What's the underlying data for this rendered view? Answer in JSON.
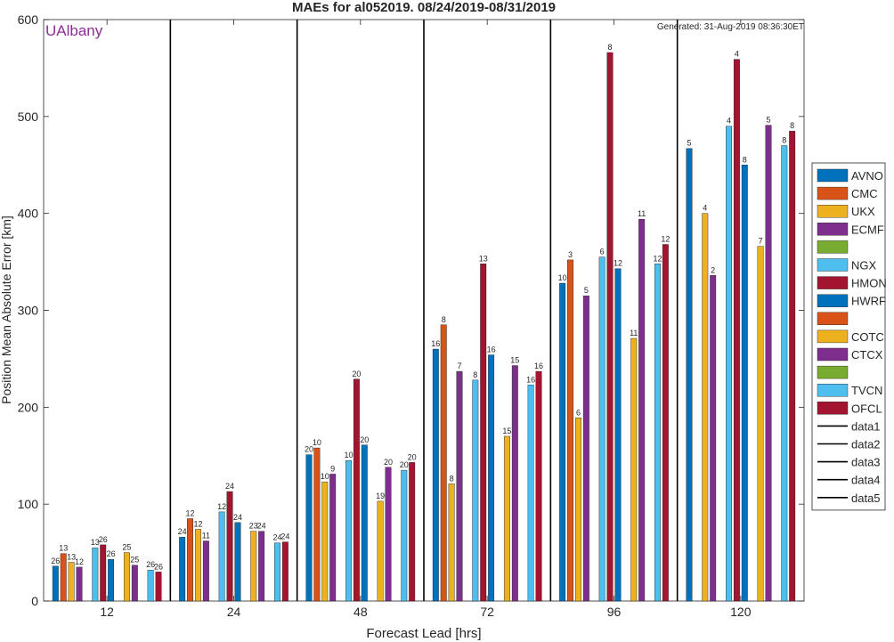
{
  "chart_data": {
    "type": "bar",
    "title": "MAEs for al052019. 08/24/2019-08/31/2019",
    "subtitle": "Generated: 31-Aug-2019 08:36:30ET",
    "watermark": "UAlbany",
    "xlabel": "Forecast Lead [hrs]",
    "ylabel": "Position Mean Absolute Error [km]",
    "ylim": [
      0,
      600
    ],
    "yticks": [
      0,
      100,
      200,
      300,
      400,
      500,
      600
    ],
    "grid": false,
    "legend_position": "right",
    "categories": [
      "12",
      "24",
      "48",
      "72",
      "96",
      "120"
    ],
    "series": [
      {
        "name": "AVNO",
        "color": "#0072BD",
        "values": [
          36,
          66,
          151,
          260,
          328,
          467
        ],
        "counts": [
          "26",
          "24",
          "20",
          "16",
          "10",
          "5"
        ]
      },
      {
        "name": "CMC",
        "color": "#D95319",
        "values": [
          49,
          85,
          158,
          285,
          352,
          null
        ],
        "counts": [
          "13",
          "12",
          "10",
          "8",
          "3",
          ""
        ]
      },
      {
        "name": "UKX",
        "color": "#EDB120",
        "values": [
          40,
          74,
          123,
          121,
          189,
          400
        ],
        "counts": [
          "13",
          "12",
          "10",
          "8",
          "6",
          "4"
        ]
      },
      {
        "name": "ECMF",
        "color": "#7E2F8E",
        "values": [
          35,
          62,
          131,
          237,
          315,
          336
        ],
        "counts": [
          "12",
          "11",
          "9",
          "7",
          "5",
          "2"
        ]
      },
      {
        "name": "",
        "color": "#77AC30",
        "values": [
          null,
          null,
          null,
          null,
          null,
          null
        ],
        "counts": [
          "",
          "",
          "",
          "",
          "",
          ""
        ]
      },
      {
        "name": "NGX",
        "color": "#4DBEEE",
        "values": [
          55,
          92,
          145,
          228,
          355,
          490
        ],
        "counts": [
          "13",
          "12",
          "10",
          "8",
          "6",
          "4"
        ]
      },
      {
        "name": "HMON",
        "color": "#A2142F",
        "values": [
          58,
          113,
          229,
          348,
          566,
          559
        ],
        "counts": [
          "26",
          "24",
          "20",
          "13",
          "8",
          "4"
        ]
      },
      {
        "name": "HWRF",
        "color": "#0072BD",
        "values": [
          43,
          81,
          161,
          254,
          343,
          450
        ],
        "counts": [
          "26",
          "24",
          "20",
          "16",
          "12",
          "8"
        ]
      },
      {
        "name": "",
        "color": "#D95319",
        "values": [
          null,
          null,
          null,
          null,
          null,
          null
        ],
        "counts": [
          "",
          "",
          "",
          "",
          "",
          ""
        ]
      },
      {
        "name": "COTC",
        "color": "#EDB120",
        "values": [
          50,
          72,
          103,
          170,
          271,
          366
        ],
        "counts": [
          "25",
          "23",
          "19",
          "15",
          "11",
          "7"
        ]
      },
      {
        "name": "CTCX",
        "color": "#7E2F8E",
        "values": [
          37,
          72,
          138,
          243,
          394,
          491
        ],
        "counts": [
          "25",
          "24",
          "20",
          "15",
          "11",
          "5"
        ]
      },
      {
        "name": "",
        "color": "#77AC30",
        "values": [
          null,
          null,
          null,
          null,
          null,
          null
        ],
        "counts": [
          "",
          "",
          "",
          "",
          "",
          ""
        ]
      },
      {
        "name": "TVCN",
        "color": "#4DBEEE",
        "values": [
          32,
          60,
          135,
          223,
          348,
          470
        ],
        "counts": [
          "26",
          "24",
          "20",
          "16",
          "12",
          "8"
        ]
      },
      {
        "name": "OFCL",
        "color": "#A2142F",
        "values": [
          30,
          61,
          143,
          237,
          368,
          485
        ],
        "counts": [
          "26",
          "24",
          "20",
          "16",
          "12",
          "8"
        ]
      }
    ],
    "extra_legend": [
      "data1",
      "data2",
      "data3",
      "data4",
      "data5"
    ]
  }
}
